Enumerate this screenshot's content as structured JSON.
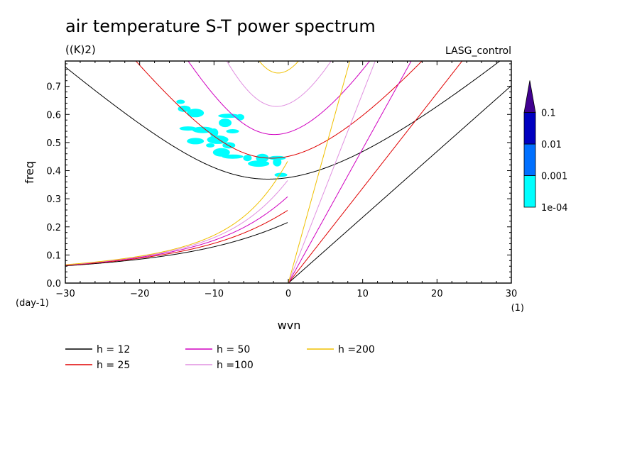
{
  "header": {
    "title": "air temperature S-T power spectrum",
    "units": "((K)2)",
    "experiment": "LASG_control"
  },
  "axes": {
    "x_label": "wvn",
    "x_unit": "(1)",
    "y_label": "freq",
    "y_unit": "(day-1)"
  },
  "colors": {
    "h12": "#000000",
    "h25": "#e00000",
    "h50": "#d000c0",
    "h100": "#e090e0",
    "h200": "#f0c000",
    "c1": "#00ffff",
    "c2": "#0070ff",
    "c3": "#0000c0",
    "c4": "#400090"
  },
  "legend": [
    {
      "label": "h = 12",
      "color": "#000000"
    },
    {
      "label": "h = 25",
      "color": "#e00000"
    },
    {
      "label": "h = 50",
      "color": "#d000c0"
    },
    {
      "label": "h =100",
      "color": "#e090e0"
    },
    {
      "label": "h =200",
      "color": "#f0c000"
    }
  ],
  "colorbar": {
    "labels": [
      "0.1",
      "0.01",
      "0.001",
      "1e-04"
    ]
  },
  "chart_data": {
    "type": "line",
    "title": "air temperature S-T power spectrum",
    "xlabel": "wvn",
    "ylabel": "freq",
    "xlim": [
      -30,
      30
    ],
    "ylim": [
      0,
      0.79
    ],
    "x_ticks": [
      -30,
      -20,
      -10,
      0,
      10,
      20,
      30
    ],
    "y_ticks": [
      0.0,
      0.1,
      0.2,
      0.3,
      0.4,
      0.5,
      0.6,
      0.7
    ],
    "series": [
      {
        "name": "h = 12",
        "key": "h12",
        "equivalent_depth_m": 12
      },
      {
        "name": "h = 25",
        "key": "h25",
        "equivalent_depth_m": 25
      },
      {
        "name": "h = 50",
        "key": "h50",
        "equivalent_depth_m": 50
      },
      {
        "name": "h =100",
        "key": "h100",
        "equivalent_depth_m": 100
      },
      {
        "name": "h =200",
        "key": "h200",
        "equivalent_depth_m": 200
      }
    ],
    "contour_levels": [
      0.0001,
      0.001,
      0.01,
      0.1
    ],
    "shaded_regions": [
      {
        "level": 0.0001,
        "x": -14.5,
        "y": 0.645
      },
      {
        "level": 0.0001,
        "x": -14.0,
        "y": 0.62
      },
      {
        "level": 0.0001,
        "x": -12.5,
        "y": 0.605
      },
      {
        "level": 0.0001,
        "x": -8.0,
        "y": 0.595
      },
      {
        "level": 0.0001,
        "x": -6.5,
        "y": 0.59
      },
      {
        "level": 0.0001,
        "x": -8.5,
        "y": 0.57
      },
      {
        "level": 0.0001,
        "x": -13.5,
        "y": 0.55
      },
      {
        "level": 0.0001,
        "x": -11.5,
        "y": 0.545
      },
      {
        "level": 0.0001,
        "x": -10.0,
        "y": 0.535
      },
      {
        "level": 0.0001,
        "x": -7.5,
        "y": 0.54
      },
      {
        "level": 0.0001,
        "x": -12.5,
        "y": 0.505
      },
      {
        "level": 0.0001,
        "x": -9.5,
        "y": 0.51
      },
      {
        "level": 0.0001,
        "x": -10.5,
        "y": 0.49
      },
      {
        "level": 0.0001,
        "x": -8.0,
        "y": 0.49
      },
      {
        "level": 0.0001,
        "x": -9.0,
        "y": 0.465
      },
      {
        "level": 0.0001,
        "x": -7.5,
        "y": 0.45
      },
      {
        "level": 0.0001,
        "x": -5.5,
        "y": 0.445
      },
      {
        "level": 0.0001,
        "x": -3.5,
        "y": 0.445
      },
      {
        "level": 0.0001,
        "x": -1.5,
        "y": 0.445
      },
      {
        "level": 0.0001,
        "x": -4.0,
        "y": 0.425
      },
      {
        "level": 0.0001,
        "x": -1.5,
        "y": 0.43
      },
      {
        "level": 0.0001,
        "x": -1.0,
        "y": 0.385
      }
    ]
  }
}
